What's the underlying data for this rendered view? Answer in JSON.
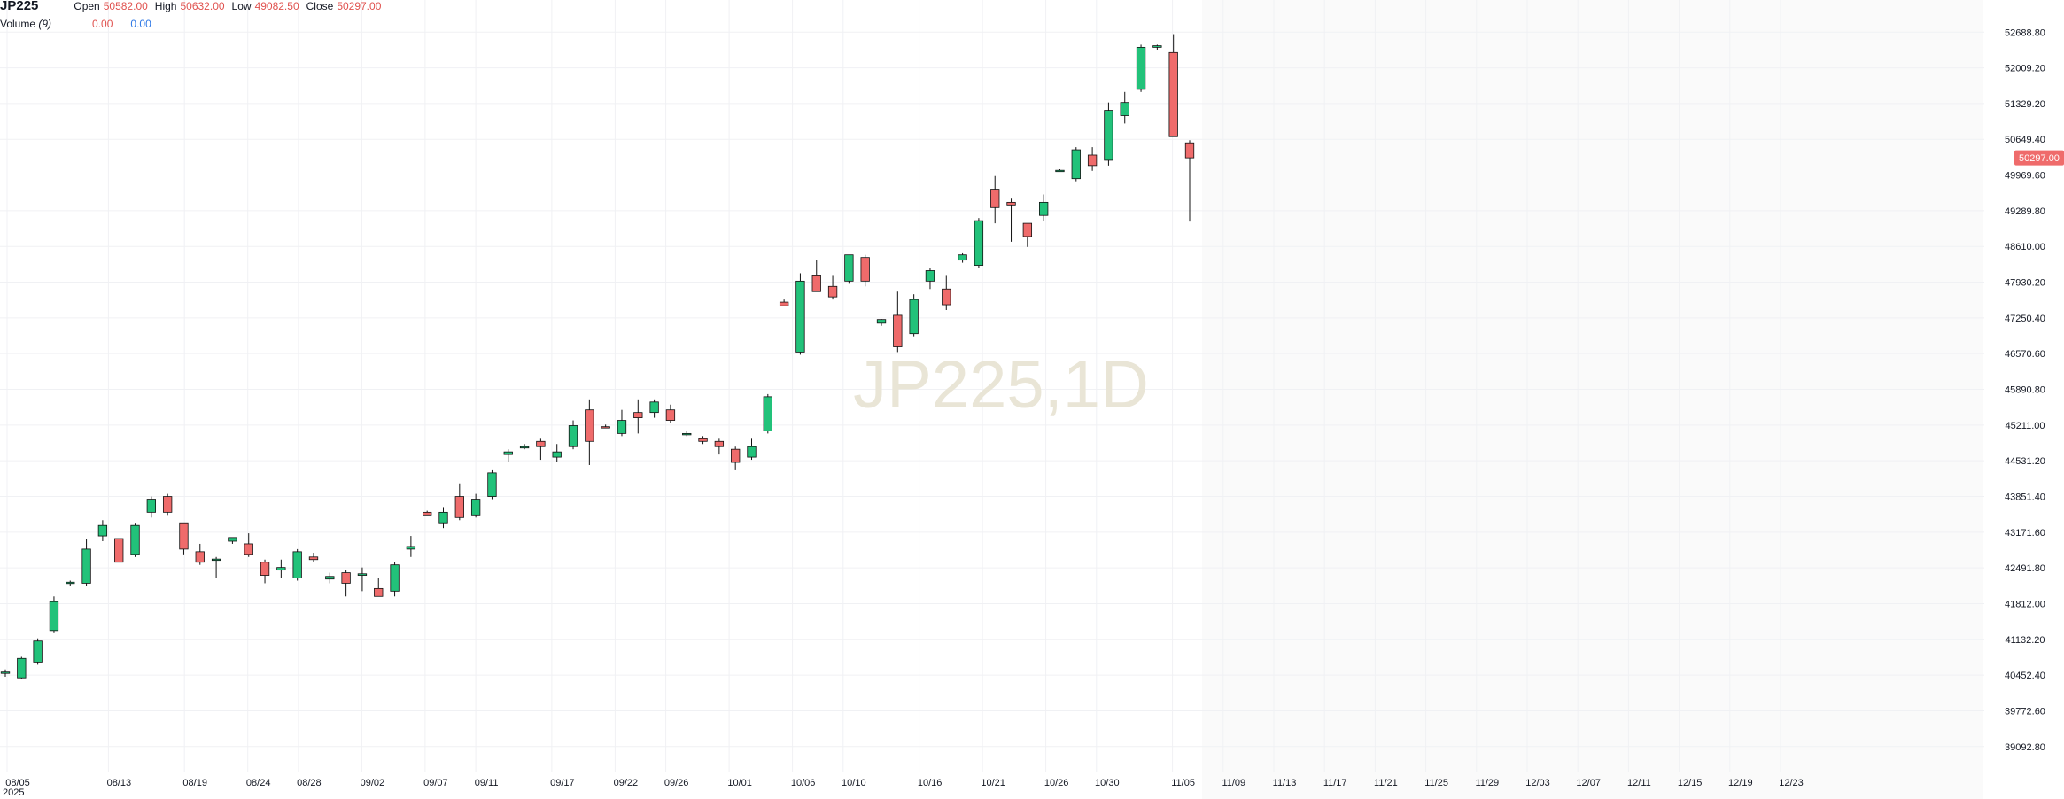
{
  "legend": {
    "symbol": "JP225",
    "open_label": "Open",
    "open_value": "50582.00",
    "high_label": "High",
    "high_value": "50632.00",
    "low_label": "Low",
    "low_value": "49082.50",
    "close_label": "Close",
    "close_value": "50297.00",
    "volume_label": "Volume",
    "volume_period": "(9)",
    "volume_value_1": "0.00",
    "volume_value_2": "0.00"
  },
  "watermark": "JP225,1D",
  "last_price_label": "50297.00",
  "colors": {
    "up": "#22c27a",
    "down": "#ef6b6b",
    "grid": "#f0f1f4",
    "axis_text": "#131722",
    "legend_value": "#e0524f",
    "volume_value_2": "#2e78e6",
    "watermark": "#e9e5d6"
  },
  "chart_data": {
    "type": "candlestick",
    "y_ticks": [
      "52688.80",
      "52009.20",
      "51329.20",
      "50649.40",
      "49969.60",
      "49289.80",
      "48610.00",
      "47930.20",
      "47250.40",
      "46570.60",
      "45890.80",
      "45211.00",
      "44531.20",
      "43851.40",
      "43171.60",
      "42491.80",
      "41812.00",
      "41132.20",
      "40452.40",
      "39772.60",
      "39092.80"
    ],
    "ylim": [
      38600,
      53300
    ],
    "x_ticks": [
      {
        "label": "08/05",
        "sublabel": "2025",
        "day": 0
      },
      {
        "label": "08/13",
        "day": 8
      },
      {
        "label": "08/19",
        "day": 14
      },
      {
        "label": "08/24",
        "day": 19
      },
      {
        "label": "08/28",
        "day": 23
      },
      {
        "label": "09/02",
        "day": 28
      },
      {
        "label": "09/07",
        "day": 33
      },
      {
        "label": "09/11",
        "day": 37
      },
      {
        "label": "09/17",
        "day": 43
      },
      {
        "label": "09/22",
        "day": 48
      },
      {
        "label": "09/26",
        "day": 52
      },
      {
        "label": "10/01",
        "day": 57
      },
      {
        "label": "10/06",
        "day": 62
      },
      {
        "label": "10/10",
        "day": 66
      },
      {
        "label": "10/16",
        "day": 72
      },
      {
        "label": "10/21",
        "day": 77
      },
      {
        "label": "10/26",
        "day": 82
      },
      {
        "label": "10/30",
        "day": 86
      },
      {
        "label": "11/05",
        "day": 92
      },
      {
        "label": "11/09",
        "day": 96
      },
      {
        "label": "11/13",
        "day": 100
      },
      {
        "label": "11/17",
        "day": 104
      },
      {
        "label": "11/21",
        "day": 108
      },
      {
        "label": "11/25",
        "day": 112
      },
      {
        "label": "11/29",
        "day": 116
      },
      {
        "label": "12/03",
        "day": 120
      },
      {
        "label": "12/07",
        "day": 124
      },
      {
        "label": "12/11",
        "day": 128
      },
      {
        "label": "12/15",
        "day": 132
      },
      {
        "label": "12/19",
        "day": 136
      },
      {
        "label": "12/23",
        "day": 140
      }
    ],
    "x_start_date": "08/05",
    "future_start": "11/06",
    "candles": [
      {
        "x": "08/04",
        "o": 40500,
        "h": 40560,
        "l": 40420,
        "c": 40510
      },
      {
        "x": "08/05",
        "o": 40400,
        "h": 40800,
        "l": 40380,
        "c": 40770
      },
      {
        "x": "08/06",
        "o": 40700,
        "h": 41150,
        "l": 40650,
        "c": 41100
      },
      {
        "x": "08/07",
        "o": 41300,
        "h": 41950,
        "l": 41250,
        "c": 41850
      },
      {
        "x": "08/08",
        "o": 42200,
        "h": 42250,
        "l": 42150,
        "c": 42220
      },
      {
        "x": "08/12",
        "o": 42200,
        "h": 43050,
        "l": 42150,
        "c": 42850
      },
      {
        "x": "08/13",
        "o": 43100,
        "h": 43400,
        "l": 43000,
        "c": 43300
      },
      {
        "x": "08/14",
        "o": 43050,
        "h": 43050,
        "l": 42650,
        "c": 42600
      },
      {
        "x": "08/15",
        "o": 42750,
        "h": 43350,
        "l": 42700,
        "c": 43300
      },
      {
        "x": "08/18",
        "o": 43550,
        "h": 43850,
        "l": 43450,
        "c": 43800
      },
      {
        "x": "08/19",
        "o": 43850,
        "h": 43900,
        "l": 43500,
        "c": 43550
      },
      {
        "x": "08/20",
        "o": 43350,
        "h": 43350,
        "l": 42750,
        "c": 42850
      },
      {
        "x": "08/21",
        "o": 42800,
        "h": 42950,
        "l": 42550,
        "c": 42600
      },
      {
        "x": "08/22",
        "o": 42650,
        "h": 42700,
        "l": 42300,
        "c": 42660
      },
      {
        "x": "08/25",
        "o": 43000,
        "h": 43050,
        "l": 42950,
        "c": 43070
      },
      {
        "x": "08/26",
        "o": 42950,
        "h": 43150,
        "l": 42700,
        "c": 42750
      },
      {
        "x": "08/27",
        "o": 42600,
        "h": 42650,
        "l": 42200,
        "c": 42350
      },
      {
        "x": "08/28",
        "o": 42450,
        "h": 42650,
        "l": 42300,
        "c": 42500
      },
      {
        "x": "08/29",
        "o": 42300,
        "h": 42850,
        "l": 42250,
        "c": 42800
      },
      {
        "x": "09/01",
        "o": 42700,
        "h": 42780,
        "l": 42600,
        "c": 42650
      },
      {
        "x": "09/02",
        "o": 42280,
        "h": 42400,
        "l": 42200,
        "c": 42330
      },
      {
        "x": "09/03",
        "o": 42400,
        "h": 42450,
        "l": 41950,
        "c": 42200
      },
      {
        "x": "09/04",
        "o": 42350,
        "h": 42500,
        "l": 42050,
        "c": 42380
      },
      {
        "x": "09/05",
        "o": 42100,
        "h": 42300,
        "l": 41950,
        "c": 41950
      },
      {
        "x": "09/08",
        "o": 42050,
        "h": 42600,
        "l": 41950,
        "c": 42550
      },
      {
        "x": "09/09",
        "o": 42850,
        "h": 43100,
        "l": 42700,
        "c": 42900
      },
      {
        "x": "09/10",
        "o": 43550,
        "h": 43580,
        "l": 43520,
        "c": 43500
      },
      {
        "x": "09/11",
        "o": 43350,
        "h": 43650,
        "l": 43250,
        "c": 43550
      },
      {
        "x": "09/12",
        "o": 43850,
        "h": 44100,
        "l": 43400,
        "c": 43450
      },
      {
        "x": "09/15",
        "o": 43500,
        "h": 43900,
        "l": 43450,
        "c": 43800
      },
      {
        "x": "09/16",
        "o": 43850,
        "h": 44350,
        "l": 43800,
        "c": 44300
      },
      {
        "x": "09/17",
        "o": 44650,
        "h": 44750,
        "l": 44500,
        "c": 44700
      },
      {
        "x": "09/18",
        "o": 44800,
        "h": 44850,
        "l": 44750,
        "c": 44800
      },
      {
        "x": "09/19",
        "o": 44900,
        "h": 44950,
        "l": 44550,
        "c": 44800
      },
      {
        "x": "09/22",
        "o": 44600,
        "h": 44850,
        "l": 44500,
        "c": 44700
      },
      {
        "x": "09/24",
        "o": 44800,
        "h": 45300,
        "l": 44750,
        "c": 45200
      },
      {
        "x": "09/25",
        "o": 45500,
        "h": 45700,
        "l": 44450,
        "c": 44900
      },
      {
        "x": "09/26",
        "o": 45180,
        "h": 45220,
        "l": 45150,
        "c": 45170
      },
      {
        "x": "09/29",
        "o": 45050,
        "h": 45500,
        "l": 45000,
        "c": 45300
      },
      {
        "x": "09/30",
        "o": 45450,
        "h": 45700,
        "l": 45050,
        "c": 45350
      },
      {
        "x": "10/01",
        "o": 45450,
        "h": 45700,
        "l": 45350,
        "c": 45650
      },
      {
        "x": "10/02",
        "o": 45500,
        "h": 45600,
        "l": 45250,
        "c": 45300
      },
      {
        "x": "10/03",
        "o": 45050,
        "h": 45100,
        "l": 45000,
        "c": 45050
      },
      {
        "x": "10/06",
        "o": 44950,
        "h": 45000,
        "l": 44850,
        "c": 44900
      },
      {
        "x": "10/07",
        "o": 44900,
        "h": 44950,
        "l": 44650,
        "c": 44800
      },
      {
        "x": "10/08",
        "o": 44750,
        "h": 44800,
        "l": 44350,
        "c": 44500
      },
      {
        "x": "10/09",
        "o": 44600,
        "h": 44950,
        "l": 44550,
        "c": 44800
      },
      {
        "x": "10/10",
        "o": 45100,
        "h": 45800,
        "l": 45050,
        "c": 45750
      },
      {
        "x": "10/14",
        "o": 47550,
        "h": 47600,
        "l": 47500,
        "c": 47480
      },
      {
        "x": "10/15",
        "o": 46600,
        "h": 48100,
        "l": 46550,
        "c": 47950
      },
      {
        "x": "10/16",
        "o": 48050,
        "h": 48350,
        "l": 47800,
        "c": 47750
      },
      {
        "x": "10/17",
        "o": 47850,
        "h": 48050,
        "l": 47600,
        "c": 47650
      },
      {
        "x": "10/20",
        "o": 47950,
        "h": 48450,
        "l": 47900,
        "c": 48450
      },
      {
        "x": "10/21",
        "o": 48400,
        "h": 48450,
        "l": 47850,
        "c": 47950
      },
      {
        "x": "10/22",
        "o": 47150,
        "h": 47230,
        "l": 47100,
        "c": 47220
      },
      {
        "x": "10/23",
        "o": 47300,
        "h": 47750,
        "l": 46600,
        "c": 46700
      },
      {
        "x": "10/24",
        "o": 46950,
        "h": 47700,
        "l": 46900,
        "c": 47600
      },
      {
        "x": "10/27",
        "o": 47950,
        "h": 48200,
        "l": 47800,
        "c": 48150
      },
      {
        "x": "10/28",
        "o": 47800,
        "h": 48050,
        "l": 47400,
        "c": 47500
      },
      {
        "x": "10/29",
        "o": 48350,
        "h": 48480,
        "l": 48300,
        "c": 48450
      },
      {
        "x": "10/30",
        "o": 48250,
        "h": 49150,
        "l": 48200,
        "c": 49100
      },
      {
        "x": "10/31",
        "o": 49700,
        "h": 49950,
        "l": 49050,
        "c": 49350
      },
      {
        "x": "11/02",
        "o": 49450,
        "h": 49520,
        "l": 48700,
        "c": 49400
      },
      {
        "x": "11/03",
        "o": 49050,
        "h": 49050,
        "l": 48600,
        "c": 48800
      },
      {
        "x": "11/04",
        "o": 49200,
        "h": 49600,
        "l": 49100,
        "c": 49450
      },
      {
        "x": "11/05a",
        "o": 50050,
        "h": 50080,
        "l": 50030,
        "c": 50060
      },
      {
        "x": "11/05b",
        "o": 49900,
        "h": 50500,
        "l": 49850,
        "c": 50450
      },
      {
        "x": "11/05c",
        "o": 50350,
        "h": 50500,
        "l": 50050,
        "c": 50150
      },
      {
        "x": "11/05d",
        "o": 50250,
        "h": 51350,
        "l": 50150,
        "c": 51200
      },
      {
        "x": "11/05e",
        "o": 51100,
        "h": 51550,
        "l": 50950,
        "c": 51350
      },
      {
        "x": "11/05f",
        "o": 51600,
        "h": 52450,
        "l": 51550,
        "c": 52400
      },
      {
        "x": "11/05g",
        "o": 52400,
        "h": 52450,
        "l": 52350,
        "c": 52430
      },
      {
        "x": "11/05h",
        "o": 52300,
        "h": 52650,
        "l": 50700,
        "c": 50700
      },
      {
        "x": "11/05i",
        "o": 50582,
        "h": 50632,
        "l": 49082.5,
        "c": 50297
      }
    ]
  }
}
